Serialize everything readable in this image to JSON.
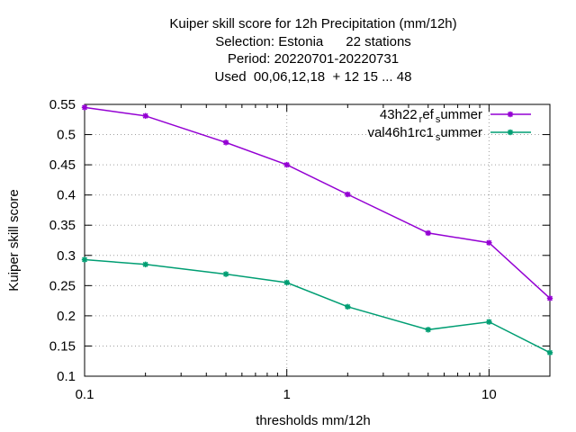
{
  "chart_data": {
    "type": "line",
    "title_lines": [
      "Kuiper skill score  for 12h Precipitation (mm/12h)",
      "Selection: Estonia      22 stations",
      "Period: 20220701-20220731",
      "Used  00,06,12,18  + 12 15 ... 48"
    ],
    "xlabel": "thresholds mm/12h",
    "ylabel": "Kuiper skill score",
    "x_scale": "log",
    "xlim": [
      0.1,
      20
    ],
    "ylim": [
      0.1,
      0.55
    ],
    "x_ticks": [
      {
        "value": 0.1,
        "label": "0.1"
      },
      {
        "value": 1,
        "label": "1"
      },
      {
        "value": 10,
        "label": "10"
      }
    ],
    "y_ticks": [
      {
        "value": 0.1,
        "label": "0.1"
      },
      {
        "value": 0.15,
        "label": "0.15"
      },
      {
        "value": 0.2,
        "label": "0.2"
      },
      {
        "value": 0.25,
        "label": "0.25"
      },
      {
        "value": 0.3,
        "label": "0.3"
      },
      {
        "value": 0.35,
        "label": "0.35"
      },
      {
        "value": 0.4,
        "label": "0.4"
      },
      {
        "value": 0.45,
        "label": "0.45"
      },
      {
        "value": 0.5,
        "label": "0.5"
      },
      {
        "value": 0.55,
        "label": "0.55"
      }
    ],
    "grid": true,
    "legend_position": "top-right",
    "x": [
      0.1,
      0.2,
      0.5,
      1,
      2,
      5,
      10,
      20
    ],
    "series": [
      {
        "name_parts": [
          "43h22",
          "r",
          "ef",
          "s",
          "ummer"
        ],
        "color": "#9400d3",
        "values": [
          0.545,
          0.531,
          0.487,
          0.45,
          0.401,
          0.337,
          0.321,
          0.229
        ]
      },
      {
        "name_parts": [
          "val46h1rc1",
          "s",
          "ummer"
        ],
        "color": "#009e73",
        "values": [
          0.293,
          0.285,
          0.269,
          0.255,
          0.215,
          0.177,
          0.19,
          0.139
        ]
      }
    ]
  }
}
